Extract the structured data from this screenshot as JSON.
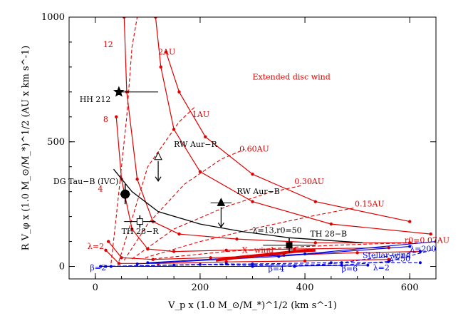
{
  "chart_data": {
    "type": "line",
    "xlabel": "V_p x (1.0 M_⊙/M_*)^1/2 (km s^-1)",
    "ylabel": "R V_φ x (1.0 M_⊙/M_*)^1/2 (AU x km s^-1)",
    "xlim": [
      -50,
      650
    ],
    "ylim": [
      -50,
      1000
    ],
    "x_ticks": [
      0,
      200,
      400,
      600
    ],
    "y_ticks": [
      0,
      500,
      1000
    ],
    "colors": {
      "disc": "#e00000",
      "stellar": "#0000dd",
      "obs": "#000000"
    },
    "disc_wind": {
      "label": "Extended disc wind",
      "lambda_curves": [
        {
          "label": "λ=2",
          "points": [
            [
              20,
              65
            ],
            [
              45,
              12
            ],
            [
              120,
              12
            ],
            [
              250,
              18
            ],
            [
              400,
              22
            ],
            [
              560,
              28
            ]
          ]
        },
        {
          "label": "4",
          "points": [
            [
              25,
              100
            ],
            [
              50,
              35
            ],
            [
              110,
              28
            ],
            [
              220,
              35
            ],
            [
              360,
              45
            ],
            [
              500,
              55
            ],
            [
              620,
              60
            ]
          ]
        },
        {
          "label": "8",
          "points": [
            [
              40,
              600
            ],
            [
              50,
              350
            ],
            [
              70,
              150
            ],
            [
              100,
              70
            ],
            [
              150,
              60
            ],
            [
              250,
              65
            ],
            [
              380,
              70
            ],
            [
              560,
              75
            ]
          ]
        },
        {
          "label": "12",
          "points": [
            [
              55,
              1000
            ],
            [
              60,
              700
            ],
            [
              80,
              350
            ],
            [
              110,
              180
            ],
            [
              160,
              130
            ],
            [
              270,
              110
            ],
            [
              420,
              95
            ],
            [
              600,
              95
            ]
          ]
        },
        {
          "label": "",
          "points": [
            [
              115,
              1000
            ],
            [
              125,
              800
            ],
            [
              150,
              550
            ],
            [
              200,
              380
            ],
            [
              300,
              260
            ],
            [
              450,
              170
            ],
            [
              640,
              130
            ]
          ]
        },
        {
          "label": "",
          "points": [
            [
              135,
              860
            ],
            [
              160,
              700
            ],
            [
              210,
              520
            ],
            [
              300,
              370
            ],
            [
              420,
              260
            ],
            [
              600,
              180
            ]
          ]
        }
      ],
      "r0_curves": [
        {
          "label": "2AU",
          "points": [
            [
              30,
              12
            ],
            [
              40,
              200
            ],
            [
              60,
              600
            ],
            [
              70,
              880
            ],
            [
              80,
              1000
            ]
          ]
        },
        {
          "label": "1AU",
          "points": [
            [
              45,
              20
            ],
            [
              70,
              190
            ],
            [
              100,
              400
            ],
            [
              160,
              580
            ],
            [
              190,
              640
            ]
          ]
        },
        {
          "label": "0.60AU",
          "points": [
            [
              55,
              25
            ],
            [
              100,
              170
            ],
            [
              170,
              330
            ],
            [
              240,
              430
            ],
            [
              285,
              470
            ]
          ]
        },
        {
          "label": "0.30AU",
          "points": [
            [
              70,
              30
            ],
            [
              150,
              150
            ],
            [
              250,
              240
            ],
            [
              330,
              295
            ],
            [
              395,
              325
            ]
          ]
        },
        {
          "label": "0.15AU",
          "points": [
            [
              95,
              35
            ],
            [
              200,
              100
            ],
            [
              320,
              160
            ],
            [
              420,
              205
            ],
            [
              495,
              235
            ]
          ]
        },
        {
          "label": "r0=0.07AU",
          "points": [
            [
              110,
              30
            ],
            [
              250,
              60
            ],
            [
              400,
              80
            ],
            [
              520,
              90
            ],
            [
              615,
              95
            ]
          ]
        }
      ]
    },
    "x_wind": {
      "label": "X−wind",
      "points": [
        [
          230,
          25
        ],
        [
          280,
          38
        ],
        [
          330,
          48
        ],
        [
          380,
          60
        ],
        [
          420,
          65
        ]
      ]
    },
    "stellar_wind": {
      "label": "Stellar wind",
      "curves": [
        {
          "label": "β=2",
          "points": [
            [
              10,
              0
            ],
            [
              150,
              5
            ],
            [
              300,
              10
            ],
            [
              450,
              15
            ],
            [
              620,
              15
            ]
          ]
        },
        {
          "label": "β=4",
          "points": [
            [
              20,
              0
            ],
            [
              200,
              8
            ],
            [
              380,
              0
            ],
            [
              470,
              15
            ],
            [
              620,
              60
            ]
          ]
        },
        {
          "label": "β=6",
          "points": [
            [
              30,
              0
            ],
            [
              250,
              10
            ],
            [
              470,
              5
            ],
            [
              560,
              20
            ],
            [
              650,
              70
            ]
          ]
        },
        {
          "label": "λ=2",
          "points": [
            [
              10,
              0
            ],
            [
              300,
              0
            ],
            [
              520,
              5
            ]
          ]
        },
        {
          "label": "λ=50",
          "points": [
            [
              80,
              10
            ],
            [
              350,
              40
            ],
            [
              600,
              80
            ]
          ]
        },
        {
          "label": "λ=200",
          "points": [
            [
              100,
              15
            ],
            [
              400,
              50
            ],
            [
              650,
              100
            ]
          ]
        }
      ]
    },
    "best_fit": {
      "label": "λ=13,r0=50",
      "points": [
        [
          35,
          390
        ],
        [
          70,
          300
        ],
        [
          120,
          220
        ],
        [
          200,
          170
        ],
        [
          280,
          140
        ],
        [
          370,
          115
        ],
        [
          510,
          95
        ]
      ]
    },
    "observations": [
      {
        "label": "HH 212",
        "x": 45,
        "y": 700,
        "x_err": [
          0,
          75
        ],
        "y_err": [
          0,
          0
        ],
        "marker": "star",
        "filled": true
      },
      {
        "label": "DG Tau−B (IVC)",
        "x": 57,
        "y": 290,
        "x_err": [
          10,
          10
        ],
        "y_err": [
          40,
          40
        ],
        "marker": "circle",
        "filled": true
      },
      {
        "label": "TH 28−R",
        "x": 85,
        "y": 180,
        "x_err": [
          30,
          30
        ],
        "y_err": [
          25,
          25
        ],
        "marker": "square",
        "filled": false
      },
      {
        "label": "RW Aur−R",
        "x": 120,
        "y": 440,
        "x_err": [
          0,
          0
        ],
        "y_err": [
          0,
          0
        ],
        "marker": "triangle",
        "filled": false,
        "upper_limit": true
      },
      {
        "label": "RW Aur−B",
        "x": 240,
        "y": 255,
        "x_err": [
          20,
          20
        ],
        "y_err": [
          0,
          0
        ],
        "marker": "triangle",
        "filled": true,
        "upper_limit": true
      },
      {
        "label": "TH 28−B",
        "x": 370,
        "y": 85,
        "x_err": [
          50,
          50
        ],
        "y_err": [
          30,
          30
        ],
        "marker": "square",
        "filled": true
      }
    ],
    "annotations": [
      {
        "text": "Extended disc wind",
        "x": 300,
        "y": 750,
        "color": "#e00000"
      },
      {
        "text": "12",
        "x": 15,
        "y": 880,
        "color": "#e00000"
      },
      {
        "text": "2AU",
        "x": 120,
        "y": 850,
        "color": "#e00000"
      },
      {
        "text": "8",
        "x": 15,
        "y": 580,
        "color": "#e00000"
      },
      {
        "text": "1AU",
        "x": 185,
        "y": 600,
        "color": "#e00000"
      },
      {
        "text": "0.60AU",
        "x": 275,
        "y": 460,
        "color": "#e00000"
      },
      {
        "text": "0.30AU",
        "x": 380,
        "y": 330,
        "color": "#e00000"
      },
      {
        "text": "0.15AU",
        "x": 495,
        "y": 240,
        "color": "#e00000"
      },
      {
        "text": "r0=0.07AU",
        "x": 590,
        "y": 95,
        "color": "#e00000"
      },
      {
        "text": "λ=2",
        "x": -15,
        "y": 70,
        "color": "#e00000"
      },
      {
        "text": "4",
        "x": 5,
        "y": 300,
        "color": "#e00000"
      },
      {
        "text": "X−wind",
        "x": 280,
        "y": 55,
        "color": "#e00000"
      },
      {
        "text": "Stellar wind",
        "x": 510,
        "y": 35,
        "color": "#0000dd"
      },
      {
        "text": "β=2",
        "x": -10,
        "y": -15,
        "color": "#0000dd"
      },
      {
        "text": "β=4",
        "x": 330,
        "y": -20,
        "color": "#0000dd"
      },
      {
        "text": "β=6",
        "x": 470,
        "y": -20,
        "color": "#0000dd"
      },
      {
        "text": "λ=2",
        "x": 530,
        "y": -15,
        "color": "#0000dd"
      },
      {
        "text": "λ=50",
        "x": 560,
        "y": 20,
        "color": "#0000dd"
      },
      {
        "text": "λ=200",
        "x": 600,
        "y": 60,
        "color": "#0000dd"
      },
      {
        "text": "HH 212",
        "x": -30,
        "y": 660,
        "color": "#000000"
      },
      {
        "text": "DG Tau−B (IVC)",
        "x": -80,
        "y": 330,
        "color": "#000000"
      },
      {
        "text": "TH 28−R",
        "x": 50,
        "y": 130,
        "color": "#000000"
      },
      {
        "text": "RW Aur−R",
        "x": 150,
        "y": 480,
        "color": "#000000"
      },
      {
        "text": "RW Aur−B",
        "x": 270,
        "y": 290,
        "color": "#000000"
      },
      {
        "text": "TH 28−B",
        "x": 410,
        "y": 120,
        "color": "#000000"
      },
      {
        "text": "λ=13,r0=50",
        "x": 300,
        "y": 135,
        "color": "#000000"
      }
    ]
  }
}
